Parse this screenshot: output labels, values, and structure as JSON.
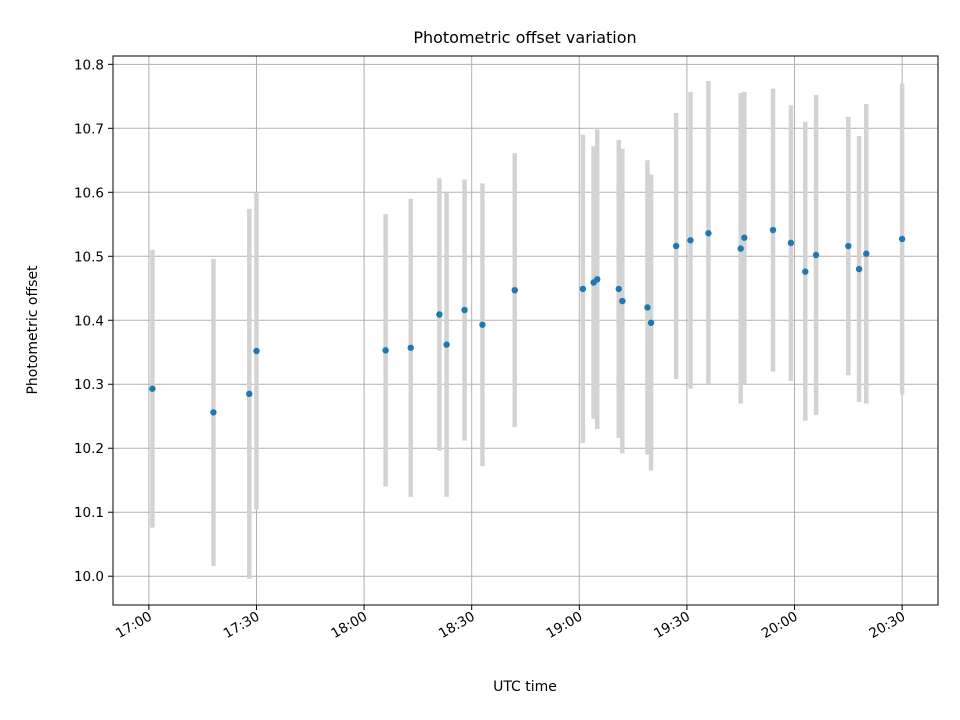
{
  "chart_data": {
    "type": "scatter",
    "title": "Photometric offset variation",
    "xlabel": "UTC time",
    "ylabel": "Photometric offset",
    "x_ticks": [
      "17:00",
      "17:30",
      "18:00",
      "18:30",
      "19:00",
      "19:30",
      "20:00",
      "20:30"
    ],
    "y_ticks": [
      "10.0",
      "10.1",
      "10.2",
      "10.3",
      "10.4",
      "10.5",
      "10.6",
      "10.7",
      "10.8"
    ],
    "xlim": [
      "16:50",
      "20:40"
    ],
    "ylim": [
      9.955,
      10.813
    ],
    "grid": true,
    "colors": {
      "point": "#1f77b4",
      "errorbar": "#d3d3d3",
      "grid": "#b0b0b0"
    },
    "points": [
      {
        "x": "17:01",
        "y": 10.293,
        "ylow": 10.076,
        "yhigh": 10.51
      },
      {
        "x": "17:18",
        "y": 10.256,
        "ylow": 10.016,
        "yhigh": 10.496
      },
      {
        "x": "17:28",
        "y": 10.285,
        "ylow": 9.996,
        "yhigh": 10.574
      },
      {
        "x": "17:30",
        "y": 10.352,
        "ylow": 10.104,
        "yhigh": 10.6
      },
      {
        "x": "18:06",
        "y": 10.353,
        "ylow": 10.14,
        "yhigh": 10.566
      },
      {
        "x": "18:13",
        "y": 10.357,
        "ylow": 10.124,
        "yhigh": 10.59
      },
      {
        "x": "18:21",
        "y": 10.409,
        "ylow": 10.196,
        "yhigh": 10.622
      },
      {
        "x": "18:23",
        "y": 10.362,
        "ylow": 10.124,
        "yhigh": 10.6
      },
      {
        "x": "18:28",
        "y": 10.416,
        "ylow": 10.212,
        "yhigh": 10.62
      },
      {
        "x": "18:33",
        "y": 10.393,
        "ylow": 10.172,
        "yhigh": 10.614
      },
      {
        "x": "18:42",
        "y": 10.447,
        "ylow": 10.233,
        "yhigh": 10.661
      },
      {
        "x": "19:01",
        "y": 10.449,
        "ylow": 10.208,
        "yhigh": 10.69
      },
      {
        "x": "19:04",
        "y": 10.459,
        "ylow": 10.246,
        "yhigh": 10.672
      },
      {
        "x": "19:05",
        "y": 10.464,
        "ylow": 10.23,
        "yhigh": 10.698
      },
      {
        "x": "19:11",
        "y": 10.449,
        "ylow": 10.216,
        "yhigh": 10.682
      },
      {
        "x": "19:12",
        "y": 10.43,
        "ylow": 10.192,
        "yhigh": 10.668
      },
      {
        "x": "19:19",
        "y": 10.42,
        "ylow": 10.19,
        "yhigh": 10.65
      },
      {
        "x": "19:20",
        "y": 10.396,
        "ylow": 10.165,
        "yhigh": 10.628
      },
      {
        "x": "19:27",
        "y": 10.516,
        "ylow": 10.308,
        "yhigh": 10.724
      },
      {
        "x": "19:31",
        "y": 10.525,
        "ylow": 10.293,
        "yhigh": 10.757
      },
      {
        "x": "19:36",
        "y": 10.536,
        "ylow": 10.3,
        "yhigh": 10.774
      },
      {
        "x": "19:45",
        "y": 10.512,
        "ylow": 10.27,
        "yhigh": 10.755
      },
      {
        "x": "19:46",
        "y": 10.529,
        "ylow": 10.3,
        "yhigh": 10.757
      },
      {
        "x": "19:54",
        "y": 10.541,
        "ylow": 10.32,
        "yhigh": 10.762
      },
      {
        "x": "19:59",
        "y": 10.521,
        "ylow": 10.305,
        "yhigh": 10.736
      },
      {
        "x": "20:03",
        "y": 10.476,
        "ylow": 10.243,
        "yhigh": 10.71
      },
      {
        "x": "20:06",
        "y": 10.502,
        "ylow": 10.252,
        "yhigh": 10.752
      },
      {
        "x": "20:15",
        "y": 10.516,
        "ylow": 10.314,
        "yhigh": 10.718
      },
      {
        "x": "20:18",
        "y": 10.48,
        "ylow": 10.272,
        "yhigh": 10.688
      },
      {
        "x": "20:20",
        "y": 10.504,
        "ylow": 10.27,
        "yhigh": 10.738
      },
      {
        "x": "20:30",
        "y": 10.527,
        "ylow": 10.284,
        "yhigh": 10.77
      }
    ]
  }
}
